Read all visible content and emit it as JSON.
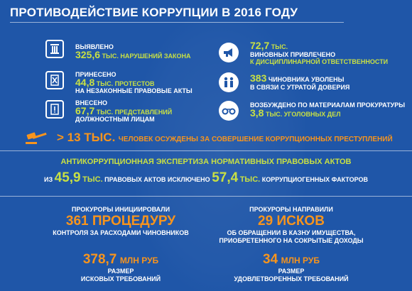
{
  "title": "ПРОТИВОДЕЙСТВИЕ КОРРУПЦИИ В 2016 ГОДУ",
  "left_stats": [
    {
      "line1": "ВЫЯВЛЕНО",
      "num": "325,6",
      "unit": "ТЫС. НАРУШЕНИЙ ЗАКОНА",
      "icon": "pillar-icon"
    },
    {
      "line1": "ПРИНЕСЕНО",
      "num": "44,8",
      "unit": "ТЫС. ПРОТЕСТОВ",
      "line3": "НА НЕЗАКОННЫЕ ПРАВОВЫЕ АКТЫ",
      "icon": "crossed-document-icon"
    },
    {
      "line1": "ВНЕСЕНО",
      "num": "67,7",
      "unit": "ТЫС. ПРЕДСТАВЛЕНИЙ",
      "line3": "ДОЛЖНОСТНЫМ ЛИЦАМ",
      "icon": "exclamation-document-icon"
    }
  ],
  "right_stats": [
    {
      "num": "72,7",
      "unit": "ТЫС.",
      "line2": "ВИНОВНЫХ ПРИВЛЕЧЕНО",
      "line3": "К ДИСЦИПЛИНАРНОЙ ОТВЕТСТВЕННОСТИ",
      "icon": "megaphone-icon"
    },
    {
      "num": "383",
      "unit": "ЧИНОВНИКА УВОЛЕНЫ",
      "line2": "В СВЯЗИ С УТРАТОЙ ДОВЕРИЯ",
      "icon": "people-icon"
    },
    {
      "line1": "ВОЗБУЖДЕНО ПО МАТЕРИАЛАМ ПРОКУРАТУРЫ",
      "num": "3,8",
      "unit": "ТЫС. УГОЛОВНЫХ ДЕЛ",
      "icon": "handcuffs-icon"
    }
  ],
  "convicted": {
    "num": "> 13 ТЫС.",
    "text": "ЧЕЛОВЕК ОСУЖДЕНЫ ЗА СОВЕРШЕНИЕ КОРРУПЦИОННЫХ ПРЕСТУПЛЕНИЙ",
    "icon": "gavel-icon"
  },
  "expertise": {
    "title": "АНТИКОРРУПЦИОННАЯ ЭКСПЕРТИЗА НОРМАТИВНЫХ ПРАВОВЫХ АКТОВ",
    "pre": "ИЗ",
    "num1": "45,9",
    "unit1": "ТЫС.",
    "mid": "ПРАВОВЫХ АКТОВ ИСКЛЮЧЕНО",
    "num2": "57,4",
    "unit2": "ТЫС.",
    "post": "КОРРУПЦИОГЕННЫХ ФАКТОРОВ"
  },
  "prosecutors_left": {
    "label": "ПРОКУРОРЫ ИНИЦИИРОВАЛИ",
    "big": "361 ПРОЦЕДУРУ",
    "desc": "КОНТРОЛЯ ЗА РАСХОДАМИ ЧИНОВНИКОВ"
  },
  "prosecutors_right": {
    "label": "ПРОКУРОРЫ НАПРАВИЛИ",
    "big": "29 ИСКОВ",
    "desc1": "ОБ ОБРАЩЕНИИ В КАЗНУ ИМУЩЕСТВА,",
    "desc2": "ПРИОБРЕТЕННОГО НА СОКРЫТЫЕ ДОХОДЫ"
  },
  "claims_left": {
    "num": "378,7",
    "unit": "МЛН РУБ",
    "l1": "РАЗМЕР",
    "l2": "ИСКОВЫХ ТРЕБОВАНИЙ"
  },
  "claims_right": {
    "num": "34",
    "unit": "МЛН РУБ",
    "l1": "РАЗМЕР",
    "l2": "УДОВЛЕТВОРЕННЫХ ТРЕБОВАНИЙ"
  }
}
